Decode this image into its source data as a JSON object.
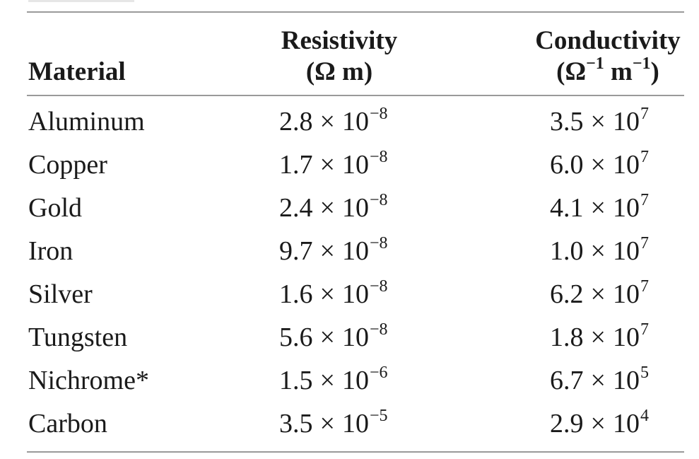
{
  "table": {
    "headers": {
      "material": "Material",
      "resistivity_title": "Resistivity",
      "resistivity_unit_open": "(Ω m)",
      "conductivity_title": "Conductivity",
      "conductivity_unit_omega": "(Ω",
      "conductivity_unit_omega_exp": "−1",
      "conductivity_unit_m": " m",
      "conductivity_unit_m_exp": "−1",
      "conductivity_unit_close": ")"
    },
    "rows": [
      {
        "material": "Aluminum",
        "res_mant": "2.8",
        "res_exp": "−8",
        "con_mant": "3.5",
        "con_exp": "7"
      },
      {
        "material": "Copper",
        "res_mant": "1.7",
        "res_exp": "−8",
        "con_mant": "6.0",
        "con_exp": "7"
      },
      {
        "material": "Gold",
        "res_mant": "2.4",
        "res_exp": "−8",
        "con_mant": "4.1",
        "con_exp": "7"
      },
      {
        "material": "Iron",
        "res_mant": "9.7",
        "res_exp": "−8",
        "con_mant": "1.0",
        "con_exp": "7"
      },
      {
        "material": "Silver",
        "res_mant": "1.6",
        "res_exp": "−8",
        "con_mant": "6.2",
        "con_exp": "7"
      },
      {
        "material": "Tungsten",
        "res_mant": "5.6",
        "res_exp": "−8",
        "con_mant": "1.8",
        "con_exp": "7"
      },
      {
        "material": "Nichrome*",
        "res_mant": "1.5",
        "res_exp": "−6",
        "con_mant": "6.7",
        "con_exp": "5"
      },
      {
        "material": "Carbon",
        "res_mant": "3.5",
        "res_exp": "−5",
        "con_mant": "2.9",
        "con_exp": "4"
      }
    ],
    "times_symbol": "×",
    "base": "10"
  }
}
